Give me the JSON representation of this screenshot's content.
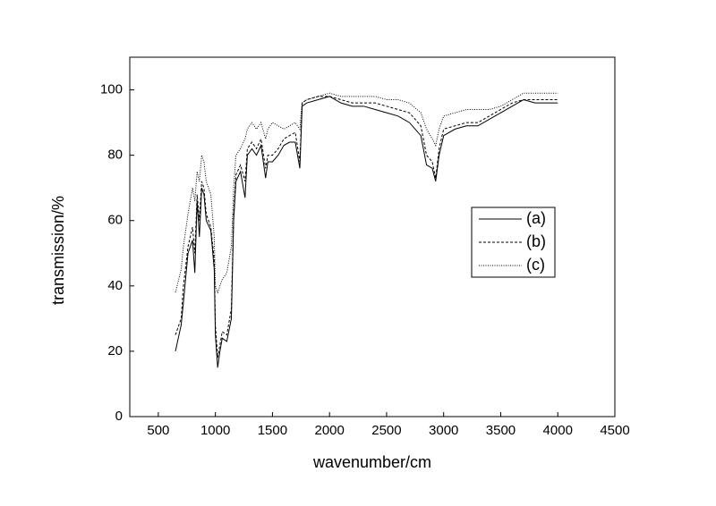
{
  "chart_data": {
    "type": "line",
    "xlabel": "wavenumber/cm",
    "ylabel": "transmission/%",
    "x": [
      650,
      700,
      720,
      760,
      800,
      820,
      840,
      860,
      880,
      900,
      920,
      960,
      990,
      1000,
      1020,
      1040,
      1060,
      1100,
      1140,
      1160,
      1180,
      1220,
      1260,
      1280,
      1320,
      1360,
      1400,
      1440,
      1460,
      1500,
      1550,
      1600,
      1650,
      1700,
      1740,
      1760,
      1800,
      1900,
      2000,
      2100,
      2200,
      2300,
      2400,
      2500,
      2600,
      2700,
      2800,
      2850,
      2900,
      2930,
      2960,
      3000,
      3100,
      3200,
      3300,
      3400,
      3500,
      3600,
      3700,
      3800,
      3900,
      4000
    ],
    "series": [
      {
        "name": "(a)",
        "color": "#000000",
        "style": "solid",
        "values": [
          20,
          28,
          35,
          50,
          54,
          44,
          66,
          55,
          70,
          68,
          60,
          57,
          45,
          25,
          15,
          20,
          24,
          23,
          30,
          60,
          72,
          75,
          67,
          80,
          82,
          80,
          83,
          73,
          78,
          78,
          80,
          83,
          84,
          84,
          76,
          95,
          96,
          97,
          98,
          96,
          95,
          95,
          94,
          93,
          92,
          90,
          86,
          77,
          76,
          72,
          80,
          86,
          88,
          89,
          89,
          91,
          93,
          95,
          97,
          96,
          96,
          96
        ]
      },
      {
        "name": "(b)",
        "color": "#000000",
        "style": "dashed",
        "values": [
          25,
          30,
          40,
          52,
          58,
          50,
          68,
          60,
          72,
          70,
          62,
          58,
          48,
          28,
          18,
          22,
          26,
          25,
          33,
          62,
          74,
          77,
          72,
          82,
          84,
          82,
          85,
          76,
          80,
          80,
          82,
          85,
          86,
          87,
          78,
          96,
          97,
          98,
          98,
          97,
          96,
          96,
          96,
          95,
          94,
          93,
          89,
          80,
          78,
          73,
          82,
          88,
          89,
          90,
          90,
          92,
          94,
          96,
          97,
          97,
          97,
          97
        ]
      },
      {
        "name": "(c)",
        "color": "#000000",
        "style": "dotted",
        "values": [
          38,
          45,
          52,
          62,
          70,
          66,
          75,
          72,
          80,
          78,
          72,
          68,
          55,
          40,
          38,
          40,
          42,
          44,
          52,
          70,
          80,
          82,
          85,
          88,
          90,
          88,
          90,
          85,
          88,
          90,
          89,
          88,
          89,
          90,
          88,
          96,
          97,
          98,
          99,
          98,
          98,
          98,
          98,
          97,
          97,
          96,
          93,
          88,
          85,
          83,
          88,
          92,
          93,
          94,
          94,
          94,
          95,
          97,
          99,
          99,
          99,
          99
        ]
      }
    ],
    "xlim": [
      250,
      4500
    ],
    "xticks": [
      500,
      1000,
      1500,
      2000,
      2500,
      3000,
      3500,
      4000,
      4500
    ],
    "ylim": [
      0,
      110
    ],
    "yticks": [
      0,
      20,
      40,
      60,
      80,
      100
    ],
    "grid": false,
    "legend": "center right"
  }
}
